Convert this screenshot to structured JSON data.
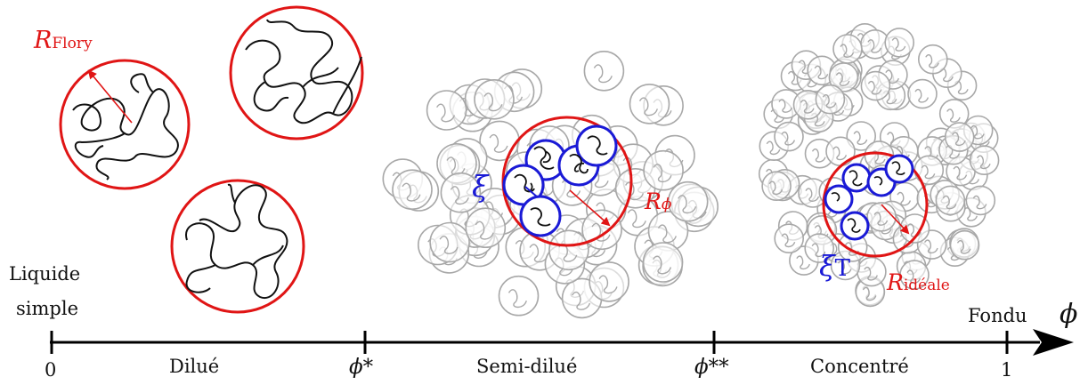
{
  "colors": {
    "red": "#e01515",
    "blue": "#1a1ad6",
    "grey": "#a8a8a8",
    "black": "#111111"
  },
  "axis": {
    "symbol": "ϕ",
    "ticks": [
      {
        "value": "0",
        "label": "0"
      },
      {
        "value": "phi_star",
        "label": "ϕ*"
      },
      {
        "value": "phi_star_star",
        "label": "ϕ**"
      },
      {
        "value": "1",
        "label": "1"
      }
    ],
    "regimes": [
      "Dilué",
      "Semi-dilué",
      "Concentré"
    ],
    "left_label_line1": "Liquide",
    "left_label_line2": "simple",
    "right_label": "Fondu"
  },
  "labels": {
    "r_flory_base": "R",
    "r_flory_sub": "Flory",
    "xi": "ξ",
    "r_phi_base": "R",
    "r_phi_sub": "ϕ",
    "xi_t_base": "ξ",
    "xi_t_sub": "T",
    "r_ideal_base": "R",
    "r_ideal_sub": "idéale"
  }
}
